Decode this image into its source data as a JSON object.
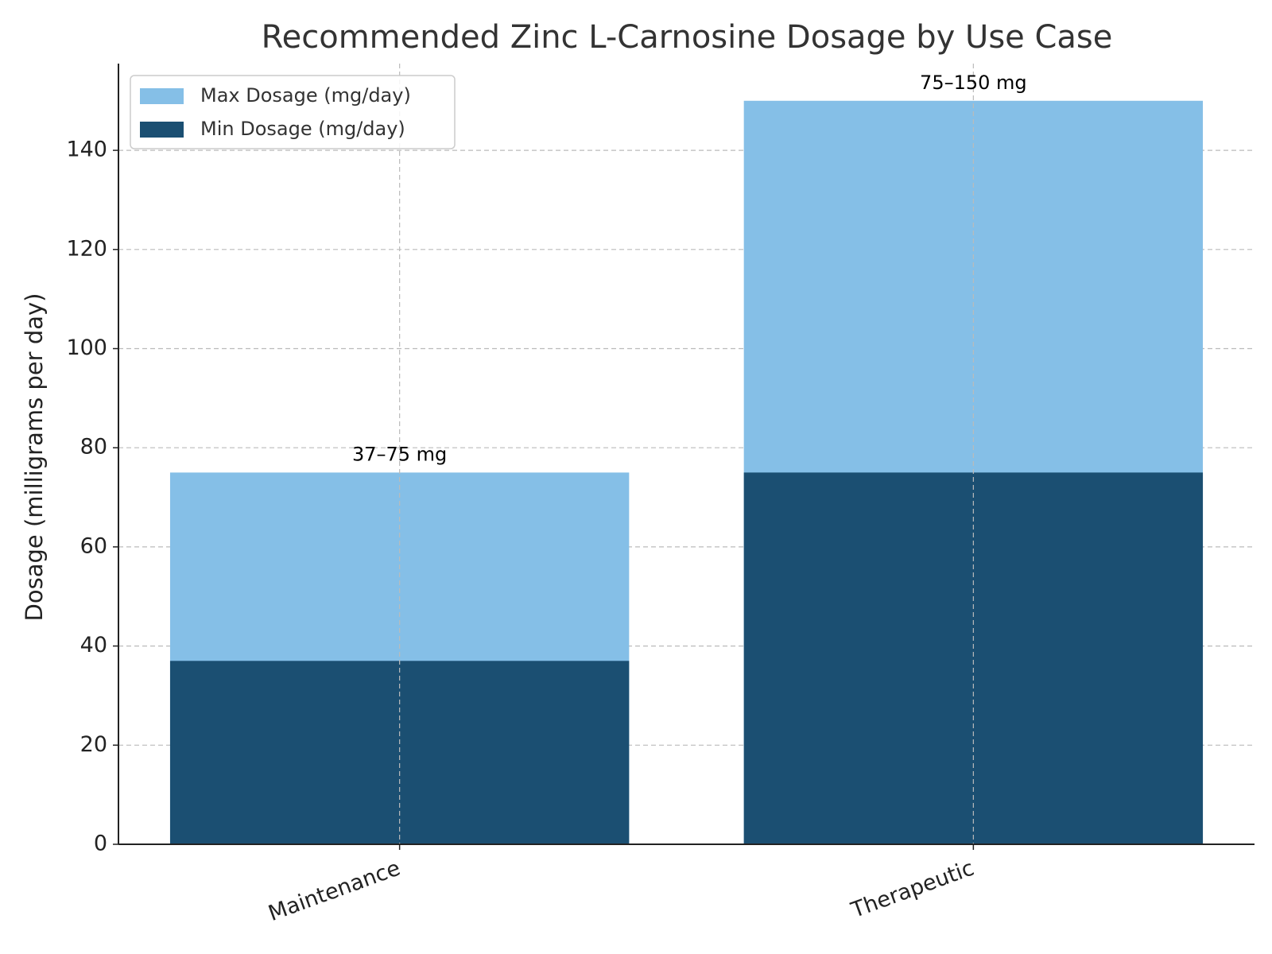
{
  "chart_data": {
    "type": "bar",
    "barmode": "overlay",
    "title": "Recommended Zinc L-Carnosine Dosage by Use Case",
    "y_label": "Dosage (milligrams per day)",
    "categories": [
      "Maintenance",
      "Therapeutic"
    ],
    "series": [
      {
        "name": "Max Dosage (mg/day)",
        "color": "#85bfe7",
        "values": [
          75,
          150
        ]
      },
      {
        "name": "Min Dosage (mg/day)",
        "color": "#1b4f72",
        "values": [
          37,
          75
        ]
      }
    ],
    "annotations": [
      "37–75 mg",
      "75–150 mg"
    ],
    "ylim": [
      0,
      157.5
    ],
    "yticks": [
      0,
      20,
      40,
      60,
      80,
      100,
      120,
      140
    ],
    "grid": true,
    "legend": "upper left"
  }
}
